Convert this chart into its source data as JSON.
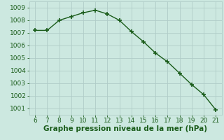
{
  "x": [
    6,
    7,
    8,
    9,
    10,
    11,
    12,
    13,
    14,
    15,
    16,
    17,
    18,
    19,
    20,
    21
  ],
  "y": [
    1007.2,
    1007.2,
    1008.0,
    1008.3,
    1008.6,
    1008.8,
    1008.5,
    1008.0,
    1007.1,
    1006.3,
    1005.4,
    1004.7,
    1003.8,
    1002.9,
    1002.1,
    1000.9
  ],
  "line_color": "#1a5c1a",
  "marker": "+",
  "marker_color": "#1a5c1a",
  "xlabel": "Graphe pression niveau de la mer (hPa)",
  "xlabel_color": "#1a5c1a",
  "background_color": "#cce8e0",
  "grid_color": "#b0ccc8",
  "ylim": [
    1000.5,
    1009.5
  ],
  "xlim": [
    5.5,
    21.5
  ],
  "yticks": [
    1001,
    1002,
    1003,
    1004,
    1005,
    1006,
    1007,
    1008,
    1009
  ],
  "xticks": [
    6,
    7,
    8,
    9,
    10,
    11,
    12,
    13,
    14,
    15,
    16,
    17,
    18,
    19,
    20,
    21
  ],
  "tick_color": "#1a5c1a",
  "tick_fontsize": 6.5,
  "xlabel_fontsize": 7.5,
  "linewidth": 1.0,
  "markersize": 5,
  "markerwidth": 1.2
}
